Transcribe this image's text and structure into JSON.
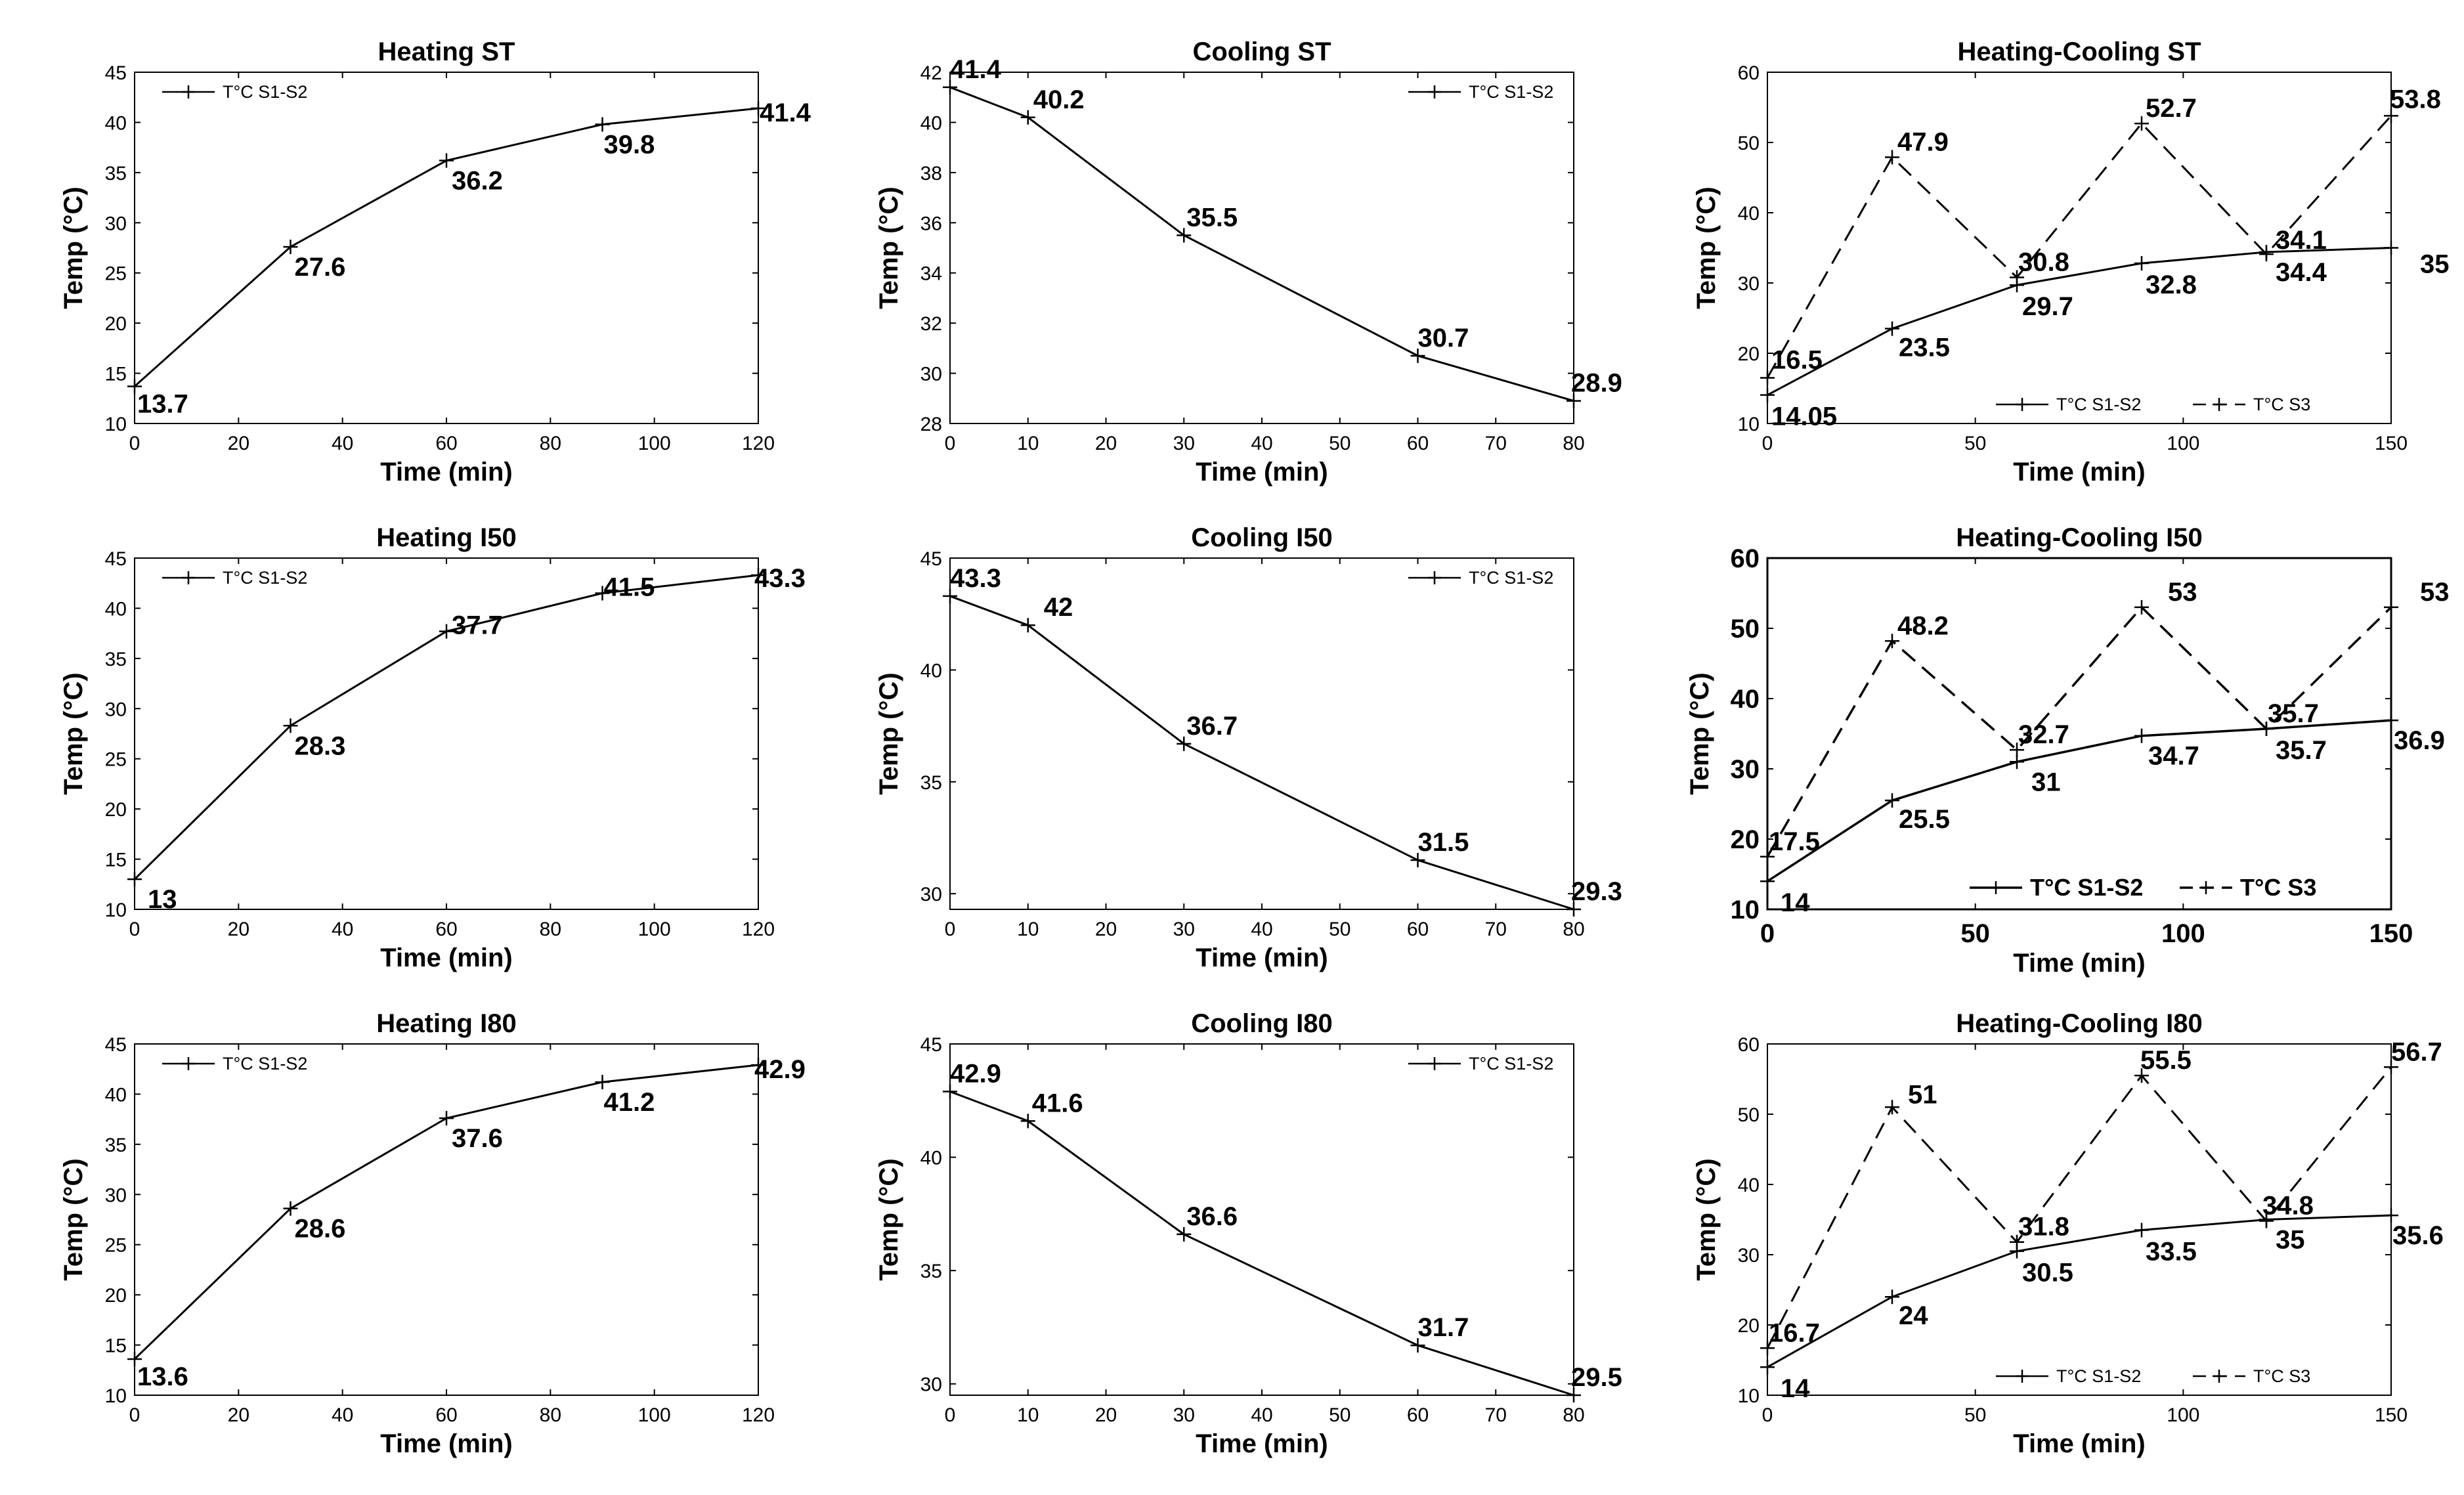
{
  "chart_data": [
    {
      "id": "heating-st",
      "type": "line",
      "title": "Heating ST",
      "xlabel": "Time (min)",
      "ylabel": "Temp (°C)",
      "xlim": [
        0,
        120
      ],
      "ylim": [
        10,
        45
      ],
      "xticks": [
        0,
        20,
        40,
        60,
        80,
        100,
        120
      ],
      "yticks": [
        10,
        15,
        20,
        25,
        30,
        35,
        40,
        45
      ],
      "legend_position": "top-left",
      "series": [
        {
          "name": "T°C S1-S2",
          "style": "solid",
          "marker": "+",
          "x": [
            0,
            30,
            60,
            90,
            120
          ],
          "y": [
            13.7,
            27.6,
            36.2,
            39.8,
            41.4
          ],
          "labels": [
            "13.7",
            "27.6",
            "36.2",
            "39.8",
            "41.4"
          ]
        }
      ]
    },
    {
      "id": "cooling-st",
      "type": "line",
      "title": "Cooling ST",
      "xlabel": "Time (min)",
      "ylabel": "Temp (°C)",
      "xlim": [
        0,
        80
      ],
      "ylim": [
        28,
        42
      ],
      "xticks": [
        0,
        10,
        20,
        30,
        40,
        50,
        60,
        70,
        80
      ],
      "yticks": [
        28,
        30,
        32,
        34,
        36,
        38,
        40,
        42
      ],
      "legend_position": "top-right",
      "series": [
        {
          "name": "T°C S1-S2",
          "style": "solid",
          "marker": "+",
          "x": [
            0,
            10,
            30,
            60,
            80
          ],
          "y": [
            41.4,
            40.2,
            35.5,
            30.7,
            28.9
          ],
          "labels": [
            "41.4",
            "40.2",
            "35.5",
            "30.7",
            "28.9"
          ]
        }
      ]
    },
    {
      "id": "heating-cooling-st",
      "type": "line",
      "title": "Heating-Cooling ST",
      "xlabel": "Time (min)",
      "ylabel": "Temp (°C)",
      "xlim": [
        0,
        150
      ],
      "ylim": [
        10,
        60
      ],
      "xticks": [
        0,
        50,
        100,
        150
      ],
      "yticks": [
        10,
        20,
        30,
        40,
        50,
        60
      ],
      "legend_position": "bottom-right",
      "series": [
        {
          "name": "T°C S1-S2",
          "style": "solid",
          "marker": "+",
          "x": [
            0,
            30,
            60,
            90,
            120,
            150
          ],
          "y": [
            14.05,
            23.5,
            29.7,
            32.8,
            34.4,
            35
          ],
          "labels": [
            "14.05",
            "23.5",
            "29.7",
            "32.8",
            "34.4",
            "35"
          ]
        },
        {
          "name": "T°C S3",
          "style": "dashed",
          "marker": "+",
          "x": [
            0,
            30,
            60,
            90,
            120,
            150
          ],
          "y": [
            16.5,
            47.9,
            30.8,
            52.7,
            34.1,
            53.8
          ],
          "labels": [
            "16.5",
            "47.9",
            "30.8",
            "52.7",
            "34.1",
            "53.8"
          ]
        }
      ]
    },
    {
      "id": "heating-i50",
      "type": "line",
      "title": "Heating I50",
      "xlabel": "Time (min)",
      "ylabel": "Temp (°C)",
      "xlim": [
        0,
        120
      ],
      "ylim": [
        10,
        45
      ],
      "xticks": [
        0,
        20,
        40,
        60,
        80,
        100,
        120
      ],
      "yticks": [
        10,
        15,
        20,
        25,
        30,
        35,
        40,
        45
      ],
      "legend_position": "top-left",
      "series": [
        {
          "name": "T°C S1-S2",
          "style": "solid",
          "marker": "+",
          "x": [
            0,
            30,
            60,
            90,
            120
          ],
          "y": [
            13,
            28.3,
            37.7,
            41.5,
            43.3
          ],
          "labels": [
            "13",
            "28.3",
            "37.7",
            "41.5",
            "43.3"
          ]
        }
      ]
    },
    {
      "id": "cooling-i50",
      "type": "line",
      "title": "Cooling I50",
      "xlabel": "Time (min)",
      "ylabel": "Temp (°C)",
      "xlim": [
        0,
        80
      ],
      "ylim": [
        29.3,
        45
      ],
      "xticks": [
        0,
        10,
        20,
        30,
        40,
        50,
        60,
        70,
        80
      ],
      "yticks": [
        30,
        35,
        40,
        45
      ],
      "legend_position": "top-right",
      "series": [
        {
          "name": "T°C S1-S2",
          "style": "solid",
          "marker": "+",
          "x": [
            0,
            10,
            30,
            60,
            80
          ],
          "y": [
            43.3,
            42,
            36.7,
            31.5,
            29.3
          ],
          "labels": [
            "43.3",
            "42",
            "36.7",
            "31.5",
            "29.3"
          ]
        }
      ]
    },
    {
      "id": "heating-cooling-i50",
      "type": "line",
      "title": "Heating-Cooling I50",
      "xlabel": "Time (min)",
      "ylabel": "Temp (°C)",
      "xlim": [
        0,
        150
      ],
      "ylim": [
        10,
        60
      ],
      "xticks": [
        0,
        50,
        100,
        150
      ],
      "yticks": [
        10,
        20,
        30,
        40,
        50,
        60
      ],
      "legend_position": "bottom-right",
      "emphasis": "bold",
      "series": [
        {
          "name": "T°C S1-S2",
          "style": "solid",
          "marker": "+",
          "x": [
            0,
            30,
            60,
            90,
            120,
            150
          ],
          "y": [
            14,
            25.5,
            31,
            34.7,
            35.7,
            36.9
          ],
          "labels": [
            "14",
            "25.5",
            "31",
            "34.7",
            "35.7",
            "36.9"
          ]
        },
        {
          "name": "T°C S3",
          "style": "dashed",
          "marker": "+",
          "x": [
            0,
            30,
            60,
            90,
            120,
            150
          ],
          "y": [
            17.5,
            48.2,
            32.7,
            53,
            35.7,
            53
          ],
          "labels": [
            "17.5",
            "48.2",
            "32.7",
            "53",
            "35.7",
            "53"
          ]
        }
      ]
    },
    {
      "id": "heating-i80",
      "type": "line",
      "title": "Heating I80",
      "xlabel": "Time (min)",
      "ylabel": "Temp (°C)",
      "xlim": [
        0,
        120
      ],
      "ylim": [
        10,
        45
      ],
      "xticks": [
        0,
        20,
        40,
        60,
        80,
        100,
        120
      ],
      "yticks": [
        10,
        15,
        20,
        25,
        30,
        35,
        40,
        45
      ],
      "legend_position": "top-left",
      "series": [
        {
          "name": "T°C S1-S2",
          "style": "solid",
          "marker": "+",
          "x": [
            0,
            30,
            60,
            90,
            120
          ],
          "y": [
            13.6,
            28.6,
            37.6,
            41.2,
            42.9
          ],
          "labels": [
            "13.6",
            "28.6",
            "37.6",
            "41.2",
            "42.9"
          ]
        }
      ]
    },
    {
      "id": "cooling-i80",
      "type": "line",
      "title": "Cooling I80",
      "xlabel": "Time (min)",
      "ylabel": "Temp (°C)",
      "xlim": [
        0,
        80
      ],
      "ylim": [
        29.5,
        45
      ],
      "xticks": [
        0,
        10,
        20,
        30,
        40,
        50,
        60,
        70,
        80
      ],
      "yticks": [
        30,
        35,
        40,
        45
      ],
      "legend_position": "top-right",
      "series": [
        {
          "name": "T°C S1-S2",
          "style": "solid",
          "marker": "+",
          "x": [
            0,
            10,
            30,
            60,
            80
          ],
          "y": [
            42.9,
            41.6,
            36.6,
            31.7,
            29.5
          ],
          "labels": [
            "42.9",
            "41.6",
            "36.6",
            "31.7",
            "29.5"
          ]
        }
      ]
    },
    {
      "id": "heating-cooling-i80",
      "type": "line",
      "title": "Heating-Cooling I80",
      "xlabel": "Time (min)",
      "ylabel": "Temp (°C)",
      "xlim": [
        0,
        150
      ],
      "ylim": [
        10,
        60
      ],
      "xticks": [
        0,
        50,
        100,
        150
      ],
      "yticks": [
        10,
        20,
        30,
        40,
        50,
        60
      ],
      "legend_position": "bottom-right",
      "series": [
        {
          "name": "T°C S1-S2",
          "style": "solid",
          "marker": "+",
          "x": [
            0,
            30,
            60,
            90,
            120,
            150
          ],
          "y": [
            14,
            24,
            30.5,
            33.5,
            35,
            35.6
          ],
          "labels": [
            "14",
            "24",
            "30.5",
            "33.5",
            "35",
            "35.6"
          ]
        },
        {
          "name": "T°C S3",
          "style": "dashed",
          "marker": "+",
          "x": [
            0,
            30,
            60,
            90,
            120,
            150
          ],
          "y": [
            16.7,
            51,
            31.8,
            55.5,
            34.8,
            56.7
          ],
          "labels": [
            "16.7",
            "51",
            "31.8",
            "55.5",
            "34.8",
            "56.7"
          ]
        }
      ]
    }
  ]
}
